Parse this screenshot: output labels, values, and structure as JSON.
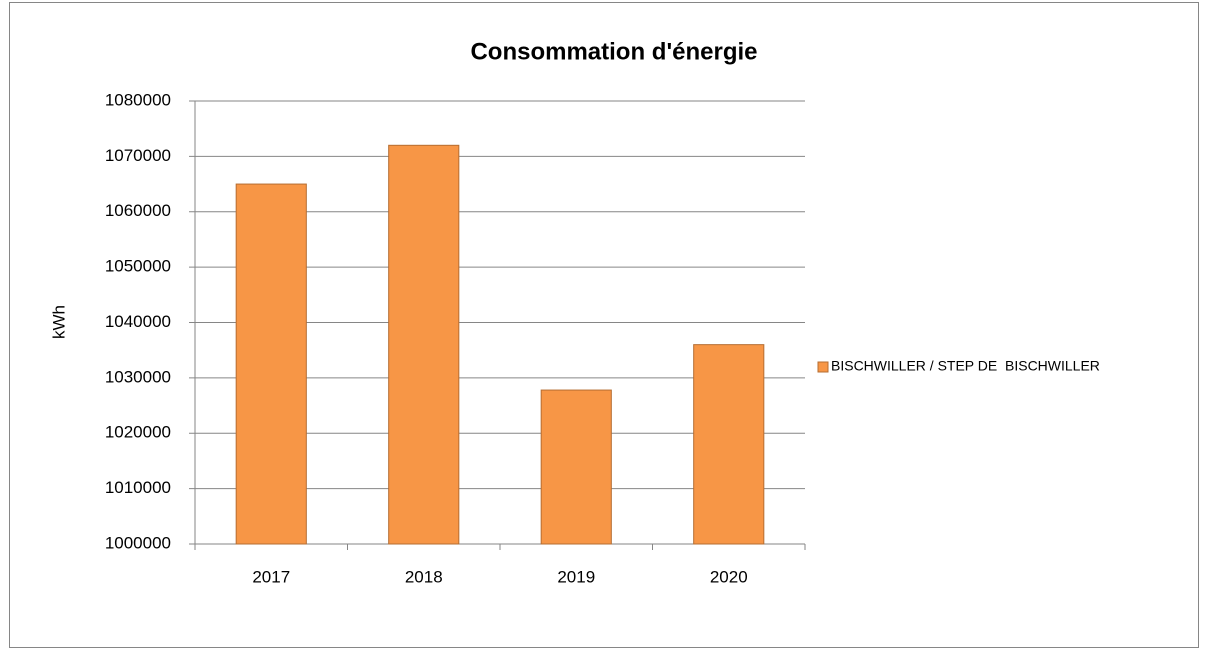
{
  "chart_data": {
    "type": "bar",
    "title": "Consommation d'énergie",
    "y_label": "kWh",
    "categories": [
      "2017",
      "2018",
      "2019",
      "2020"
    ],
    "series": [
      {
        "name": "BISCHWILLER / STEP DE  BISCHWILLER",
        "color": "#f79646",
        "values": [
          1065000,
          1072000,
          1027800,
          1036000
        ]
      }
    ],
    "ylim": [
      1000000,
      1080000
    ],
    "yticks": [
      1000000,
      1010000,
      1020000,
      1030000,
      1040000,
      1050000,
      1060000,
      1070000,
      1080000
    ],
    "grid": true,
    "legend": "right"
  }
}
